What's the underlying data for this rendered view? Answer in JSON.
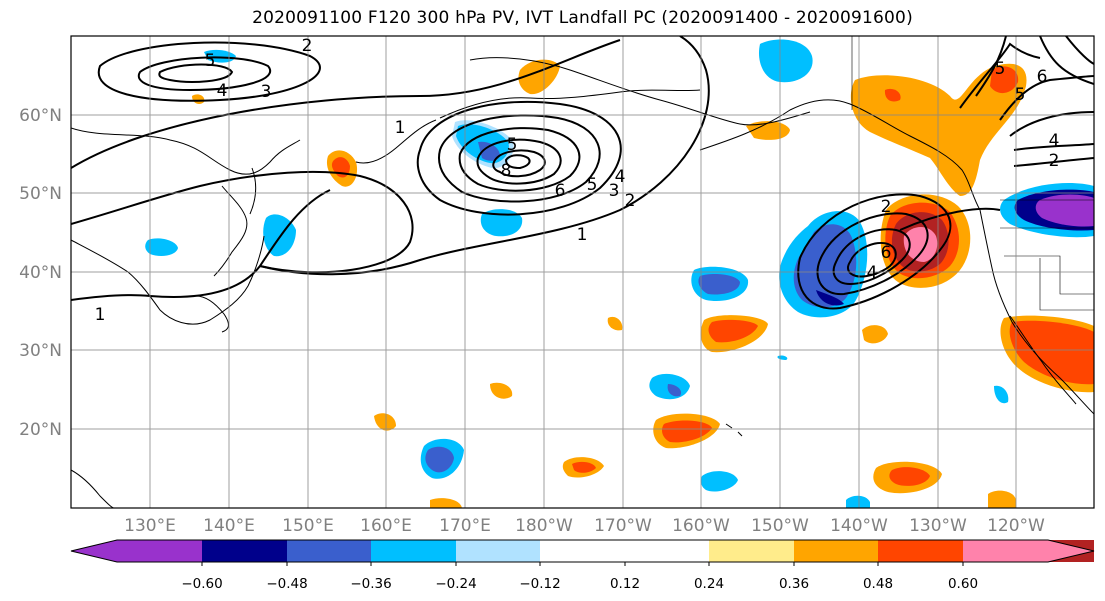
{
  "title": "2020091100 F120 300 hPa PV, IVT Landfall PC (2020091400 - 2020091600)",
  "lat_labels": [
    "60°N",
    "50°N",
    "40°N",
    "30°N",
    "20°N"
  ],
  "lon_labels": [
    "130°E",
    "140°E",
    "150°E",
    "160°E",
    "170°E",
    "180°W",
    "170°W",
    "160°W",
    "150°W",
    "140°W",
    "130°W",
    "120°W"
  ],
  "colorbar": {
    "colors": [
      "#9932cc",
      "#00008b",
      "#3a5fcd",
      "#00bfff",
      "#b0e2ff",
      "#ffffff",
      "#ffffff",
      "#ffec8b",
      "#ffa500",
      "#ff4500",
      "#b22222",
      "#ff82ab"
    ],
    "ticks": [
      "−0.60",
      "−0.48",
      "−0.36",
      "−0.24",
      "−0.12",
      "0.12",
      "0.24",
      "0.36",
      "0.48",
      "0.60"
    ]
  },
  "contour_labels": [
    "2",
    "5",
    "4",
    "3",
    "5",
    "8",
    "6",
    "5",
    "4",
    "3",
    "2",
    "1",
    "1",
    "2",
    "4",
    "6",
    "5",
    "6",
    "5",
    "4",
    "2",
    "1"
  ]
}
